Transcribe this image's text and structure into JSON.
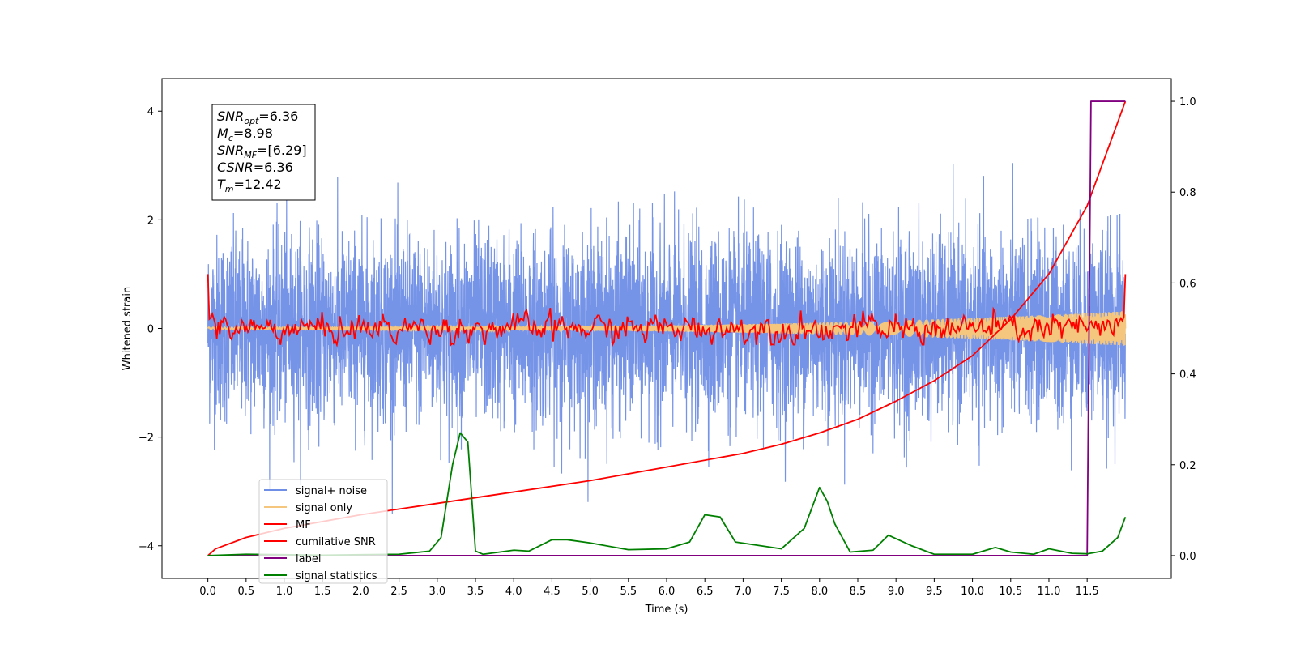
{
  "chart_data": {
    "type": "line",
    "title": "",
    "xlabel": "Time (s)",
    "ylabel": "Whitened strain",
    "xlim": [
      -0.6,
      12.6
    ],
    "ylim": [
      -4.6,
      4.6
    ],
    "y2lim": [
      -0.05,
      1.05
    ],
    "xticks": [
      0.0,
      0.5,
      1.0,
      1.5,
      2.0,
      2.5,
      3.0,
      3.5,
      4.0,
      4.5,
      5.0,
      5.5,
      6.0,
      6.5,
      7.0,
      7.5,
      8.0,
      8.5,
      9.0,
      9.5,
      10.0,
      10.5,
      11.0,
      11.5
    ],
    "xtick_labels": [
      "0.0",
      "0.5",
      "1.0",
      "1.5",
      "2.0",
      "2.5",
      "3.0",
      "3.5",
      "4.0",
      "4.5",
      "5.0",
      "5.5",
      "6.0",
      "6.5",
      "7.0",
      "7.5",
      "8.0",
      "8.5",
      "9.0",
      "9.5",
      "10.0",
      "10.5",
      "11.0",
      "11.5"
    ],
    "yticks": [
      -4,
      -2,
      0,
      2,
      4
    ],
    "ytick_labels": [
      "−4",
      "−2",
      "0",
      "2",
      "4"
    ],
    "y2ticks": [
      0.0,
      0.2,
      0.4,
      0.6,
      0.8,
      1.0
    ],
    "y2tick_labels": [
      "0.0",
      "0.2",
      "0.4",
      "0.6",
      "0.8",
      "1.0"
    ],
    "grid": false,
    "legend_position": "lower-left",
    "annotation": {
      "lines": [
        {
          "sym": "SNR",
          "sub": "opt",
          "value": "=6.36"
        },
        {
          "sym": "M",
          "sub": "c",
          "value": "=8.98"
        },
        {
          "sym": "SNR",
          "sub": "MF",
          "value": "=[6.29]"
        },
        {
          "sym": "CSNR",
          "sub": "",
          "value": "=6.36"
        },
        {
          "sym": "T",
          "sub": "m",
          "value": "=12.42"
        }
      ]
    },
    "series": [
      {
        "name": "signal+ noise",
        "color": "#6f8ee6",
        "axis": "left",
        "description": "whitened noise band, roughly ±1.5 with spikes to about ±4"
      },
      {
        "name": "signal only",
        "color": "#f5c77e",
        "axis": "left",
        "amplitude_start": 0.02,
        "amplitude_end": 0.32
      },
      {
        "name": "MF",
        "color": "#ff0000",
        "axis": "left",
        "start": 1.0,
        "end": 1.0,
        "range": [
          -0.3,
          0.45
        ]
      },
      {
        "name": "cumilative SNR",
        "color": "#ff0000",
        "axis": "right",
        "x": [
          0.0,
          0.1,
          0.5,
          1.0,
          2.0,
          3.0,
          4.0,
          5.0,
          6.0,
          7.0,
          7.5,
          8.0,
          8.5,
          9.0,
          9.5,
          10.0,
          10.5,
          11.0,
          11.5,
          12.0
        ],
        "y": [
          0.0,
          0.015,
          0.04,
          0.06,
          0.09,
          0.115,
          0.14,
          0.165,
          0.195,
          0.225,
          0.245,
          0.27,
          0.3,
          0.34,
          0.385,
          0.44,
          0.52,
          0.62,
          0.77,
          1.0
        ]
      },
      {
        "name": "label",
        "color": "#800080",
        "axis": "right",
        "x": [
          0.0,
          11.45,
          11.5,
          11.55,
          12.0
        ],
        "y": [
          0.0,
          0.0,
          0.0,
          1.0,
          1.0
        ]
      },
      {
        "name": "signal statistics",
        "color": "#008000",
        "axis": "right",
        "x": [
          0.0,
          0.5,
          1.0,
          1.5,
          2.0,
          2.5,
          2.9,
          3.05,
          3.2,
          3.3,
          3.4,
          3.5,
          3.6,
          4.0,
          4.2,
          4.5,
          4.7,
          5.0,
          5.5,
          6.0,
          6.3,
          6.5,
          6.7,
          6.9,
          7.5,
          7.8,
          8.0,
          8.1,
          8.2,
          8.4,
          8.7,
          8.9,
          9.2,
          9.5,
          10.0,
          10.3,
          10.5,
          10.8,
          11.0,
          11.3,
          11.5,
          11.7,
          11.9,
          12.0
        ],
        "y": [
          0.0,
          0.003,
          0.002,
          0.001,
          0.002,
          0.003,
          0.01,
          0.04,
          0.2,
          0.27,
          0.25,
          0.01,
          0.003,
          0.012,
          0.01,
          0.035,
          0.035,
          0.028,
          0.013,
          0.015,
          0.03,
          0.09,
          0.085,
          0.03,
          0.015,
          0.06,
          0.15,
          0.12,
          0.07,
          0.008,
          0.012,
          0.045,
          0.022,
          0.003,
          0.003,
          0.018,
          0.008,
          0.003,
          0.015,
          0.005,
          0.004,
          0.01,
          0.04,
          0.085
        ]
      }
    ]
  }
}
